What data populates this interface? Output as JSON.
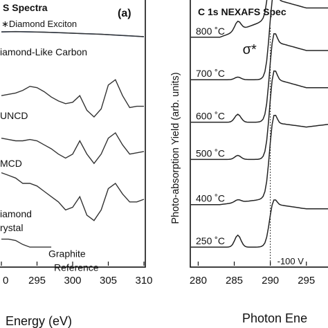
{
  "chart_data": [
    {
      "type": "line",
      "panel": "(a)",
      "title": "S Spectra",
      "annotation": "∗Diamond Exciton",
      "xlabel": "Energy (eV)",
      "xlim": [
        290,
        310
      ],
      "ticks": [
        "0",
        "295",
        "300",
        "305",
        "310"
      ],
      "series": [
        {
          "name": "Diamond-Like Carbon",
          "label": "iamond-Like Carbon",
          "offset": 0.86,
          "reference_color": "#3b5b8f",
          "x": [
            290,
            292,
            294,
            296,
            298,
            300,
            302,
            304,
            306,
            308,
            310
          ],
          "y": [
            0.02,
            0.021,
            0.02,
            0.019,
            0.017,
            0.015,
            0.013,
            0.011,
            0.008,
            0.005,
            0.002
          ]
        },
        {
          "name": "UNCD",
          "label": "UNCD",
          "offset": 0.62,
          "x": [
            290,
            291,
            292,
            293,
            294,
            295,
            296,
            297,
            298,
            299,
            300,
            301,
            302,
            303,
            304,
            305,
            306,
            307,
            308,
            309,
            310
          ],
          "y": [
            0.02,
            0.025,
            0.03,
            0.04,
            0.055,
            0.05,
            0.035,
            0.015,
            0.0,
            -0.01,
            -0.005,
            0.02,
            -0.035,
            -0.06,
            -0.03,
            0.06,
            0.08,
            0.02,
            -0.025,
            -0.02,
            -0.02
          ]
        },
        {
          "name": "MCD",
          "label": "MCD",
          "offset": 0.44,
          "x": [
            290,
            291,
            292,
            293,
            294,
            295,
            296,
            297,
            298,
            299,
            300,
            301,
            302,
            303,
            304,
            305,
            306,
            307,
            308,
            309,
            310
          ],
          "y": [
            0.04,
            0.035,
            0.03,
            0.03,
            0.035,
            0.03,
            0.015,
            0.0,
            -0.02,
            -0.035,
            -0.02,
            0.03,
            -0.02,
            -0.055,
            -0.02,
            0.04,
            0.06,
            0.015,
            -0.02,
            -0.015,
            -0.01
          ]
        },
        {
          "name": "Diamond Crystal",
          "label": "iamond",
          "label2": "rystal",
          "offset": 0.25,
          "x": [
            290,
            291,
            292,
            293,
            294,
            295,
            296,
            297,
            298,
            299,
            300,
            301,
            302,
            303,
            304,
            305,
            306,
            307,
            308,
            309,
            310
          ],
          "y": [
            0.1,
            0.09,
            0.08,
            0.06,
            0.06,
            0.05,
            0.03,
            0.01,
            -0.01,
            -0.04,
            -0.03,
            0.01,
            -0.06,
            -0.08,
            -0.04,
            0.04,
            0.06,
            0.02,
            -0.01,
            -0.01,
            0.0
          ]
        },
        {
          "name": "Graphite Reference",
          "label": "Graphite",
          "label2": "Reference",
          "offset": 0.1,
          "x": [
            290,
            291,
            292,
            293,
            294,
            295,
            296,
            297
          ],
          "y": [
            0.0,
            0.0,
            -0.005,
            -0.02,
            -0.03,
            -0.03,
            -0.03,
            -0.03
          ]
        }
      ]
    },
    {
      "type": "line",
      "title": "C 1s NEXAFS Spec",
      "sigma_label": "σ*",
      "ylabel": "Photo-absorption Yield (arb. units)",
      "xlabel": "Photon Ene",
      "xlim": [
        279,
        298
      ],
      "ticks": [
        "280",
        "285",
        "290",
        "295"
      ],
      "marker_x": 290,
      "bias_label": "-100 V",
      "series": [
        {
          "name": "800 ˚C",
          "offset": 0.86,
          "pre": 0.06,
          "bump": 0.035,
          "bump_x": 285.5,
          "post": 0.3
        },
        {
          "name": "700 ˚C",
          "offset": 0.7,
          "pre": 0.0,
          "bump": 0.01,
          "bump_x": 285.5,
          "post": 0.3
        },
        {
          "name": "600 ˚C",
          "offset": 0.54,
          "pre": 0.0,
          "bump": 0.03,
          "bump_x": 285.5,
          "post": 0.3
        },
        {
          "name": "500 ˚C",
          "offset": 0.4,
          "pre": 0.0,
          "bump": 0.015,
          "bump_x": 285.5,
          "post": 0.3
        },
        {
          "name": "400 ˚C",
          "offset": 0.23,
          "pre": 0.02,
          "bump": 0.01,
          "bump_x": 285.5,
          "post": 0.28
        },
        {
          "name": "250 ˚C",
          "offset": 0.07,
          "pre": 0.0,
          "bump": 0.045,
          "bump_x": 285.5,
          "post": 0.16
        }
      ]
    }
  ]
}
